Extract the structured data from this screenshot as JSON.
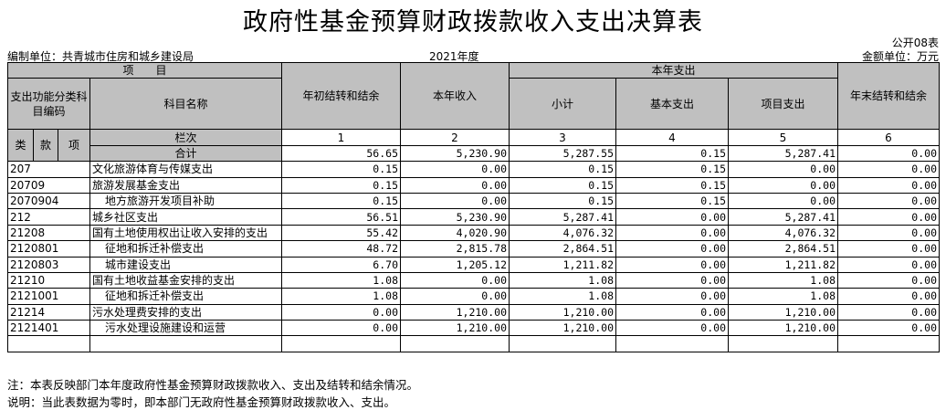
{
  "title": "政府性基金预算财政拨款收入支出决算表",
  "form_no": "公开08表",
  "unit_label": "编制单位：共青城市住房和城乡建设局",
  "year": "2021年度",
  "amount_unit": "金额单位：万元",
  "headers": {
    "item": "项　　目",
    "code": "支出功能分类科目编码",
    "name": "科目名称",
    "col1": "年初结转和结余",
    "col2": "本年收入",
    "group": "本年支出",
    "col3": "小计",
    "col4": "基本支出",
    "col5": "项目支出",
    "col6": "年末结转和结余",
    "lei": "类",
    "kuan": "款",
    "xiang": "项",
    "lanci": "栏次",
    "nums": [
      "1",
      "2",
      "3",
      "4",
      "5",
      "6"
    ]
  },
  "total": {
    "label": "合计",
    "values": [
      "56.65",
      "5,230.90",
      "5,287.55",
      "0.15",
      "5,287.41",
      "0.00"
    ]
  },
  "rows": [
    {
      "code": "207",
      "name": "文化旅游体育与传媒支出",
      "indent": false,
      "values": [
        "0.15",
        "0.00",
        "0.15",
        "0.15",
        "0.00",
        "0.00"
      ]
    },
    {
      "code": "20709",
      "name": "旅游发展基金支出",
      "indent": false,
      "values": [
        "0.15",
        "0.00",
        "0.15",
        "0.15",
        "0.00",
        "0.00"
      ]
    },
    {
      "code": "2070904",
      "name": "地方旅游开发项目补助",
      "indent": true,
      "values": [
        "0.15",
        "0.00",
        "0.15",
        "0.15",
        "0.00",
        "0.00"
      ]
    },
    {
      "code": "212",
      "name": "城乡社区支出",
      "indent": false,
      "values": [
        "56.51",
        "5,230.90",
        "5,287.41",
        "0.00",
        "5,287.41",
        "0.00"
      ]
    },
    {
      "code": "21208",
      "name": "国有土地使用权出让收入安排的支出",
      "indent": false,
      "values": [
        "55.42",
        "4,020.90",
        "4,076.32",
        "0.00",
        "4,076.32",
        "0.00"
      ]
    },
    {
      "code": "2120801",
      "name": "征地和拆迁补偿支出",
      "indent": true,
      "values": [
        "48.72",
        "2,815.78",
        "2,864.51",
        "0.00",
        "2,864.51",
        "0.00"
      ]
    },
    {
      "code": "2120803",
      "name": "城市建设支出",
      "indent": true,
      "values": [
        "6.70",
        "1,205.12",
        "1,211.82",
        "0.00",
        "1,211.82",
        "0.00"
      ]
    },
    {
      "code": "21210",
      "name": "国有土地收益基金安排的支出",
      "indent": false,
      "values": [
        "1.08",
        "0.00",
        "1.08",
        "0.00",
        "1.08",
        "0.00"
      ]
    },
    {
      "code": "2121001",
      "name": "征地和拆迁补偿支出",
      "indent": true,
      "values": [
        "1.08",
        "0.00",
        "1.08",
        "0.00",
        "1.08",
        "0.00"
      ]
    },
    {
      "code": "21214",
      "name": "污水处理费安排的支出",
      "indent": false,
      "values": [
        "0.00",
        "1,210.00",
        "1,210.00",
        "0.00",
        "1,210.00",
        "0.00"
      ]
    },
    {
      "code": "2121401",
      "name": "污水处理设施建设和运营",
      "indent": true,
      "values": [
        "0.00",
        "1,210.00",
        "1,210.00",
        "0.00",
        "1,210.00",
        "0.00"
      ]
    }
  ],
  "notes": [
    "注：本表反映部门本年度政府性基金预算财政拨款收入、支出及结转和结余情况。",
    "说明：当此表数据为零时，即本部门无政府性基金预算财政拨款收入、支出。"
  ],
  "colors": {
    "header_bg": "#c0c0c0"
  }
}
